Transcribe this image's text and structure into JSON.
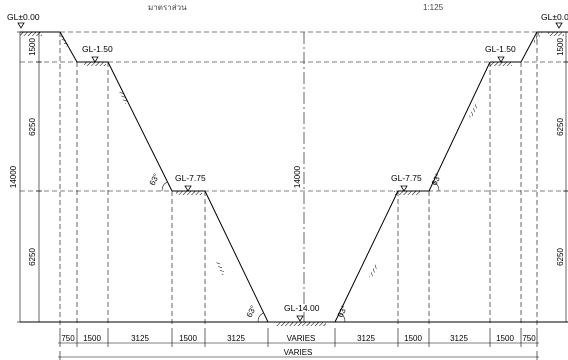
{
  "header": {
    "scale_label_th": "มาตราส่วน",
    "scale_value": "1:125"
  },
  "levels": {
    "ground_left": "GL±0.00",
    "ground_right": "GL±0.00",
    "berm1_left": "GL-1.50",
    "berm1_right": "GL-1.50",
    "berm2_left": "GL-7.75",
    "berm2_right": "GL-7.75",
    "bottom": "GL-14.00"
  },
  "vertical_dims": {
    "top_left": "1500",
    "top_right": "1500",
    "mid_upper_left": "6250",
    "mid_upper_right": "6250",
    "mid_lower_left": "6250",
    "mid_lower_right": "6250",
    "total_left": "14000",
    "total_center": "14000"
  },
  "slope_labels": {
    "s1_left": "63°",
    "s2_left": "63°",
    "s1_right": "63°",
    "s2_right": "63°"
  },
  "horizontal_dims": {
    "d1": "750",
    "d2": "1500",
    "d3": "3125",
    "d4": "1500",
    "d5": "3125",
    "center": "VARIES",
    "d6": "3125",
    "d7": "1500",
    "d8": "3125",
    "d9": "1500",
    "d10": "750",
    "overall": "VARIES"
  }
}
